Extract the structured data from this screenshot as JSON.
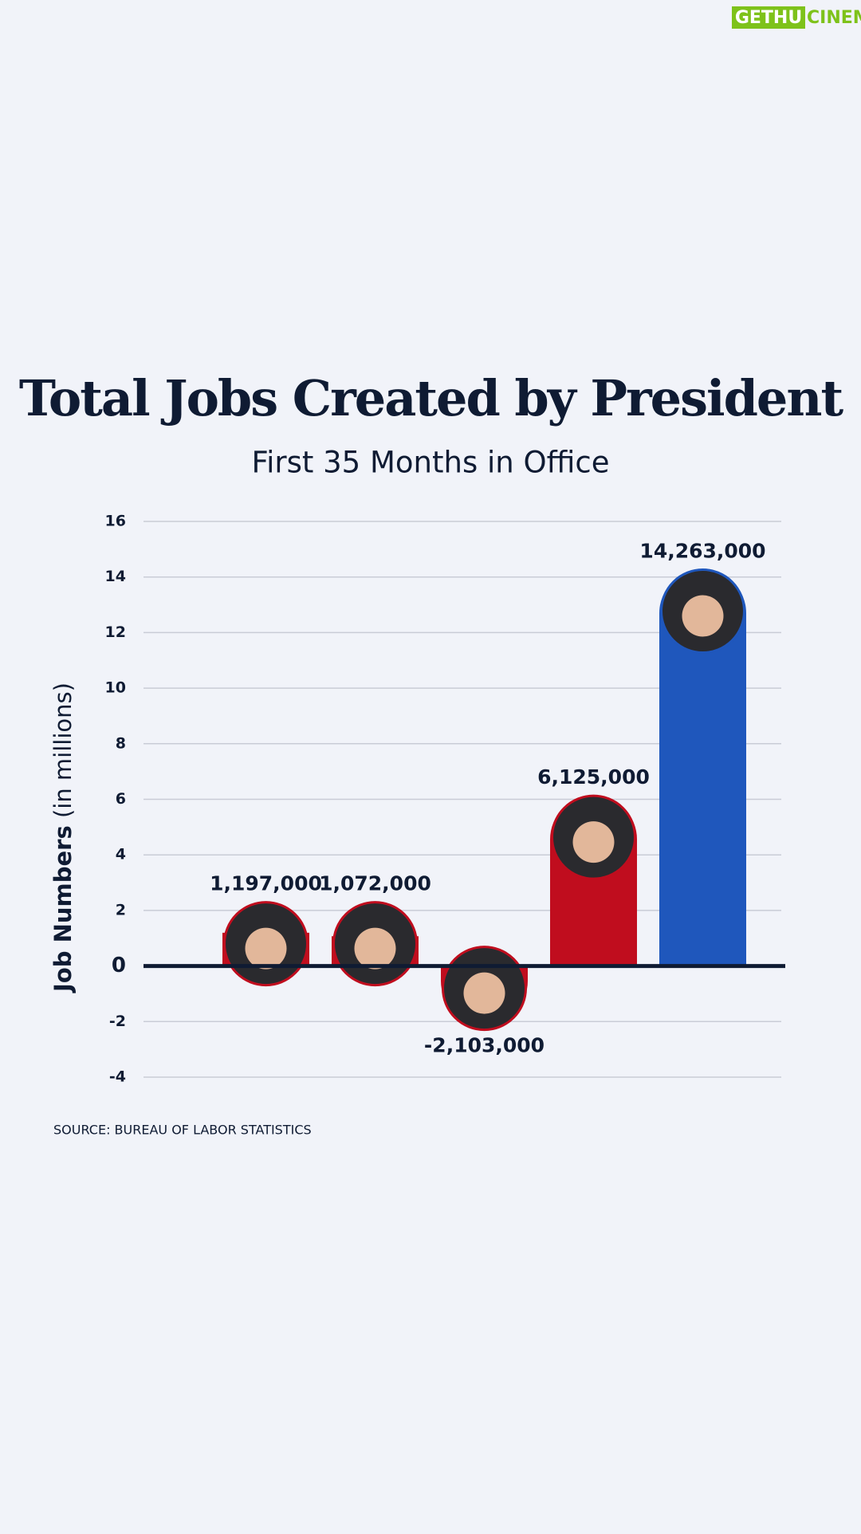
{
  "watermark": {
    "left": "GETHU",
    "right": "CINEMA"
  },
  "chart_data": {
    "type": "bar",
    "title": "Total Jobs Created by President",
    "subtitle": "First 35 Months in Office",
    "ylabel": "Job Numbers",
    "ylabel_note": "(in millions)",
    "values": [
      1.197,
      1.072,
      -2.103,
      6.125,
      14.263
    ],
    "value_labels": [
      "1,197,000",
      "1,072,000",
      "-2,103,000",
      "6,125,000",
      "14,263,000"
    ],
    "colors": [
      "#c00d1e",
      "#c00d1e",
      "#c00d1e",
      "#c00d1e",
      "#1f57bc"
    ],
    "ylim": [
      -4,
      16
    ],
    "yticks": [
      -4,
      -2,
      0,
      2,
      4,
      6,
      8,
      10,
      12,
      14,
      16
    ],
    "grid": true,
    "source": "SOURCE: BUREAU OF LABOR STATISTICS"
  }
}
